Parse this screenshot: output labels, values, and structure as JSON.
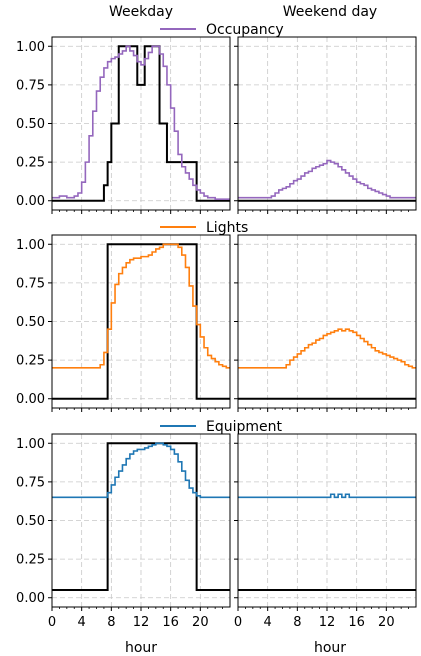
{
  "chart_data": {
    "type": "line",
    "column_titles": [
      "Weekday",
      "Weekend day"
    ],
    "xlabel": "hour",
    "x_ticks": [
      0,
      4,
      8,
      12,
      16,
      20
    ],
    "xlim": [
      0,
      24
    ],
    "y_ticks": [
      "0.00",
      "0.25",
      "0.50",
      "0.75",
      "1.00"
    ],
    "ylim": [
      -0.06,
      1.06
    ],
    "grid": true,
    "panels": [
      {
        "legend": "Occupancy",
        "color": "#9467bd",
        "weekday_profile": [
          0.02,
          0.02,
          0.03,
          0.03,
          0.02,
          0.02,
          0.03,
          0.05,
          0.12,
          0.25,
          0.42,
          0.58,
          0.71,
          0.8,
          0.86,
          0.9,
          0.92,
          0.93,
          0.95,
          0.97,
          1.0,
          0.97,
          0.94,
          0.9,
          0.88,
          0.92,
          0.96,
          1.0,
          1.0,
          0.95,
          0.87,
          0.75,
          0.6,
          0.45,
          0.3,
          0.22,
          0.18,
          0.14,
          0.1,
          0.07,
          0.05,
          0.03,
          0.02,
          0.02,
          0.01,
          0.01,
          0.01,
          0.01
        ],
        "weekday_reference": [
          0,
          0,
          0,
          0,
          0,
          0,
          0,
          0,
          0,
          0,
          0,
          0,
          0,
          0,
          0.1,
          0.25,
          0.5,
          0.5,
          1.0,
          1.0,
          1.0,
          1.0,
          1.0,
          0.75,
          0.75,
          1.0,
          1.0,
          1.0,
          1.0,
          0.5,
          0.5,
          0.25,
          0.25,
          0.25,
          0.25,
          0.25,
          0.25,
          0.25,
          0.25,
          0,
          0,
          0,
          0,
          0,
          0,
          0,
          0,
          0
        ],
        "weekend_profile": [
          0.02,
          0.02,
          0.02,
          0.02,
          0.02,
          0.02,
          0.02,
          0.02,
          0.02,
          0.03,
          0.05,
          0.07,
          0.08,
          0.09,
          0.11,
          0.13,
          0.14,
          0.16,
          0.18,
          0.19,
          0.21,
          0.22,
          0.23,
          0.24,
          0.26,
          0.25,
          0.24,
          0.22,
          0.2,
          0.18,
          0.16,
          0.14,
          0.12,
          0.11,
          0.1,
          0.08,
          0.07,
          0.06,
          0.05,
          0.04,
          0.03,
          0.02,
          0.02,
          0.02,
          0.02,
          0.02,
          0.02,
          0.02
        ],
        "weekend_reference": [
          0,
          0,
          0,
          0,
          0,
          0,
          0,
          0,
          0,
          0,
          0,
          0,
          0,
          0,
          0,
          0,
          0,
          0,
          0,
          0,
          0,
          0,
          0,
          0,
          0,
          0,
          0,
          0,
          0,
          0,
          0,
          0,
          0,
          0,
          0,
          0,
          0,
          0,
          0,
          0,
          0,
          0,
          0,
          0,
          0,
          0,
          0,
          0
        ]
      },
      {
        "legend": "Lights",
        "color": "#ff7f0e",
        "weekday_profile": [
          0.2,
          0.2,
          0.2,
          0.2,
          0.2,
          0.2,
          0.2,
          0.2,
          0.2,
          0.2,
          0.2,
          0.2,
          0.2,
          0.22,
          0.3,
          0.45,
          0.62,
          0.74,
          0.81,
          0.85,
          0.88,
          0.9,
          0.91,
          0.91,
          0.92,
          0.92,
          0.93,
          0.95,
          0.97,
          0.98,
          1.0,
          1.0,
          1.0,
          1.0,
          0.98,
          0.93,
          0.85,
          0.73,
          0.6,
          0.48,
          0.4,
          0.33,
          0.28,
          0.26,
          0.24,
          0.22,
          0.21,
          0.2
        ],
        "weekday_reference": [
          0,
          0,
          0,
          0,
          0,
          0,
          0,
          0,
          0,
          0,
          0,
          0,
          0,
          0,
          0,
          1.0,
          1.0,
          1.0,
          1.0,
          1.0,
          1.0,
          1.0,
          1.0,
          1.0,
          1.0,
          1.0,
          1.0,
          1.0,
          1.0,
          1.0,
          1.0,
          1.0,
          1.0,
          1.0,
          1.0,
          1.0,
          1.0,
          1.0,
          1.0,
          0,
          0,
          0,
          0,
          0,
          0,
          0,
          0,
          0
        ],
        "weekend_profile": [
          0.2,
          0.2,
          0.2,
          0.2,
          0.2,
          0.2,
          0.2,
          0.2,
          0.2,
          0.2,
          0.2,
          0.2,
          0.2,
          0.22,
          0.25,
          0.27,
          0.29,
          0.31,
          0.33,
          0.35,
          0.36,
          0.38,
          0.39,
          0.41,
          0.42,
          0.43,
          0.44,
          0.45,
          0.44,
          0.45,
          0.44,
          0.43,
          0.41,
          0.39,
          0.37,
          0.35,
          0.33,
          0.31,
          0.3,
          0.29,
          0.28,
          0.27,
          0.26,
          0.25,
          0.24,
          0.22,
          0.21,
          0.2
        ],
        "weekend_reference": [
          0,
          0,
          0,
          0,
          0,
          0,
          0,
          0,
          0,
          0,
          0,
          0,
          0,
          0,
          0,
          0,
          0,
          0,
          0,
          0,
          0,
          0,
          0,
          0,
          0,
          0,
          0,
          0,
          0,
          0,
          0,
          0,
          0,
          0,
          0,
          0,
          0,
          0,
          0,
          0,
          0,
          0,
          0,
          0,
          0,
          0,
          0,
          0
        ]
      },
      {
        "legend": "Equipment",
        "color": "#1f77b4",
        "weekday_profile": [
          0.65,
          0.65,
          0.65,
          0.65,
          0.65,
          0.65,
          0.65,
          0.65,
          0.65,
          0.65,
          0.65,
          0.65,
          0.65,
          0.65,
          0.65,
          0.68,
          0.73,
          0.78,
          0.82,
          0.86,
          0.9,
          0.93,
          0.95,
          0.96,
          0.96,
          0.97,
          0.98,
          0.99,
          1.0,
          1.0,
          0.99,
          0.98,
          0.96,
          0.93,
          0.88,
          0.82,
          0.76,
          0.71,
          0.68,
          0.66,
          0.65,
          0.65,
          0.65,
          0.65,
          0.65,
          0.65,
          0.65,
          0.65
        ],
        "weekday_reference": [
          0.05,
          0.05,
          0.05,
          0.05,
          0.05,
          0.05,
          0.05,
          0.05,
          0.05,
          0.05,
          0.05,
          0.05,
          0.05,
          0.05,
          0.05,
          1.0,
          1.0,
          1.0,
          1.0,
          1.0,
          1.0,
          1.0,
          1.0,
          1.0,
          1.0,
          1.0,
          1.0,
          1.0,
          1.0,
          1.0,
          1.0,
          1.0,
          1.0,
          1.0,
          1.0,
          1.0,
          1.0,
          1.0,
          1.0,
          0.05,
          0.05,
          0.05,
          0.05,
          0.05,
          0.05,
          0.05,
          0.05,
          0.05
        ],
        "weekend_profile": [
          0.65,
          0.65,
          0.65,
          0.65,
          0.65,
          0.65,
          0.65,
          0.65,
          0.65,
          0.65,
          0.65,
          0.65,
          0.65,
          0.65,
          0.65,
          0.65,
          0.65,
          0.65,
          0.65,
          0.65,
          0.65,
          0.65,
          0.65,
          0.65,
          0.65,
          0.67,
          0.65,
          0.67,
          0.65,
          0.67,
          0.65,
          0.65,
          0.65,
          0.65,
          0.65,
          0.65,
          0.65,
          0.65,
          0.65,
          0.65,
          0.65,
          0.65,
          0.65,
          0.65,
          0.65,
          0.65,
          0.65,
          0.65
        ],
        "weekend_reference": [
          0.05,
          0.05,
          0.05,
          0.05,
          0.05,
          0.05,
          0.05,
          0.05,
          0.05,
          0.05,
          0.05,
          0.05,
          0.05,
          0.05,
          0.05,
          0.05,
          0.05,
          0.05,
          0.05,
          0.05,
          0.05,
          0.05,
          0.05,
          0.05,
          0.05,
          0.05,
          0.05,
          0.05,
          0.05,
          0.05,
          0.05,
          0.05,
          0.05,
          0.05,
          0.05,
          0.05,
          0.05,
          0.05,
          0.05,
          0.05,
          0.05,
          0.05,
          0.05,
          0.05,
          0.05,
          0.05,
          0.05,
          0.05
        ]
      }
    ]
  }
}
